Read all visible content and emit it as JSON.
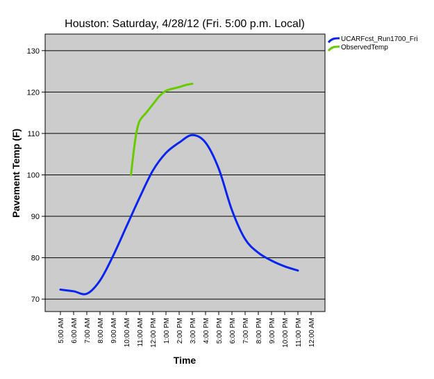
{
  "chart_data": {
    "type": "line",
    "title": "Houston: Saturday, 4/28/12 (Fri. 5:00 p.m. Local)",
    "xlabel": "Time",
    "ylabel": "Pavement Temp (F)",
    "categories": [
      "5:00 AM",
      "6:00 AM",
      "7:00 AM",
      "8:00 AM",
      "9:00 AM",
      "10:00 AM",
      "11:00 AM",
      "12:00 PM",
      "1:00 PM",
      "2:00 PM",
      "3:00 PM",
      "4:00 PM",
      "5:00 PM",
      "6:00 PM",
      "7:00 PM",
      "8:00 PM",
      "9:00 PM",
      "10:00 PM",
      "11:00 PM",
      "12:00 AM"
    ],
    "ylim": [
      67,
      134
    ],
    "yticks": [
      70,
      80,
      90,
      100,
      110,
      120,
      130
    ],
    "grid": "horizontal",
    "legend_position": "top-right",
    "series": [
      {
        "name": "UCARFcst_Run1700_Fri",
        "color": "#0a24f0",
        "values": [
          72.3,
          71.9,
          71.3,
          74.5,
          80.5,
          87.5,
          94.5,
          101,
          105.3,
          107.8,
          109.6,
          107.8,
          101.5,
          91.5,
          84.5,
          81.2,
          79.3,
          77.9,
          76.9,
          null
        ]
      },
      {
        "name": "ObservedTemp",
        "color": "#66cc00",
        "points": [
          {
            "x": 10.35,
            "y": 100
          },
          {
            "x": 10.55,
            "y": 105.5
          },
          {
            "x": 10.75,
            "y": 110
          },
          {
            "x": 11.0,
            "y": 113
          },
          {
            "x": 11.5,
            "y": 115
          },
          {
            "x": 12.0,
            "y": 117
          },
          {
            "x": 12.5,
            "y": 119
          },
          {
            "x": 13.0,
            "y": 120.3
          },
          {
            "x": 13.5,
            "y": 120.8
          },
          {
            "x": 14.0,
            "y": 121.2
          },
          {
            "x": 14.5,
            "y": 121.7
          },
          {
            "x": 15.0,
            "y": 122
          }
        ]
      }
    ]
  }
}
